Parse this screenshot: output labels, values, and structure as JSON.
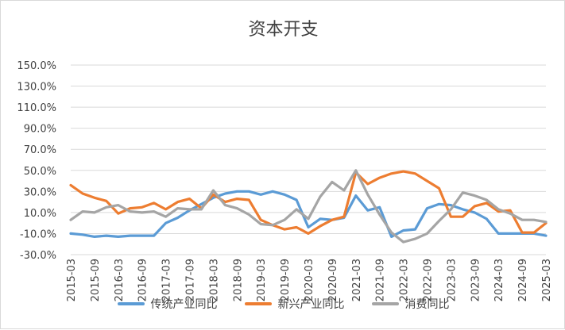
{
  "chart_data": {
    "type": "line",
    "title": "资本开支",
    "xlabel": "",
    "ylabel": "",
    "ylim": [
      -30,
      150
    ],
    "y_ticks": [
      "150.0%",
      "130.0%",
      "110.0%",
      "90.0%",
      "70.0%",
      "50.0%",
      "30.0%",
      "10.0%",
      "-10.0%",
      "-30.0%"
    ],
    "y_tick_values": [
      150,
      130,
      110,
      90,
      70,
      50,
      30,
      10,
      -10,
      -30
    ],
    "x": [
      "2015-03",
      "2015-06",
      "2015-09",
      "2015-12",
      "2016-03",
      "2016-06",
      "2016-09",
      "2016-12",
      "2017-03",
      "2017-06",
      "2017-09",
      "2017-12",
      "2018-03",
      "2018-06",
      "2018-09",
      "2018-12",
      "2019-03",
      "2019-06",
      "2019-09",
      "2019-12",
      "2020-03",
      "2020-06",
      "2020-09",
      "2020-12",
      "2021-03",
      "2021-06",
      "2021-09",
      "2021-12",
      "2022-03",
      "2022-06",
      "2022-09",
      "2022-12",
      "2023-03",
      "2023-06",
      "2023-09",
      "2023-12",
      "2024-03",
      "2024-06",
      "2024-09",
      "2024-12",
      "2025-03"
    ],
    "x_tick_labels": [
      "2015-03",
      "2015-09",
      "2016-03",
      "2016-09",
      "2017-03",
      "2017-09",
      "2018-03",
      "2018-09",
      "2019-03",
      "2019-09",
      "2020-03",
      "2020-09",
      "2021-03",
      "2021-09",
      "2022-03",
      "2022-09",
      "2023-03",
      "2023-09",
      "2024-03",
      "2024-09",
      "2025-03"
    ],
    "grid": "horizontal",
    "legend_position": "bottom",
    "series": [
      {
        "name": "传统产业同比",
        "color": "#5B9BD5",
        "values": [
          -10,
          -11,
          -13,
          -12,
          -13,
          -12,
          -12,
          -12,
          0,
          5,
          12,
          18,
          24,
          28,
          30,
          30,
          27,
          30,
          27,
          22,
          -4,
          4,
          3,
          5,
          26,
          12,
          15,
          -13,
          -7,
          -6,
          14,
          18,
          17,
          13,
          10,
          4,
          -10,
          -10,
          -10,
          -10,
          -12
        ]
      },
      {
        "name": "新兴产业同比",
        "color": "#ED7D31",
        "values": [
          36,
          28,
          24,
          21,
          9,
          14,
          15,
          19,
          13,
          20,
          23,
          14,
          27,
          20,
          23,
          22,
          3,
          -2,
          -6,
          -4,
          -10,
          -3,
          3,
          6,
          48,
          37,
          43,
          47,
          49,
          47,
          40,
          33,
          6,
          6,
          16,
          19,
          11,
          12,
          -9,
          -9,
          0
        ]
      },
      {
        "name": "消费同比",
        "color": "#A5A5A5",
        "values": [
          3,
          11,
          10,
          15,
          17,
          11,
          10,
          11,
          6,
          14,
          13,
          13,
          31,
          17,
          14,
          8,
          -1,
          -2,
          3,
          13,
          4,
          25,
          39,
          31,
          50,
          27,
          8,
          -9,
          -18,
          -15,
          -10,
          2,
          13,
          29,
          26,
          22,
          13,
          9,
          3,
          3,
          1
        ]
      }
    ]
  }
}
